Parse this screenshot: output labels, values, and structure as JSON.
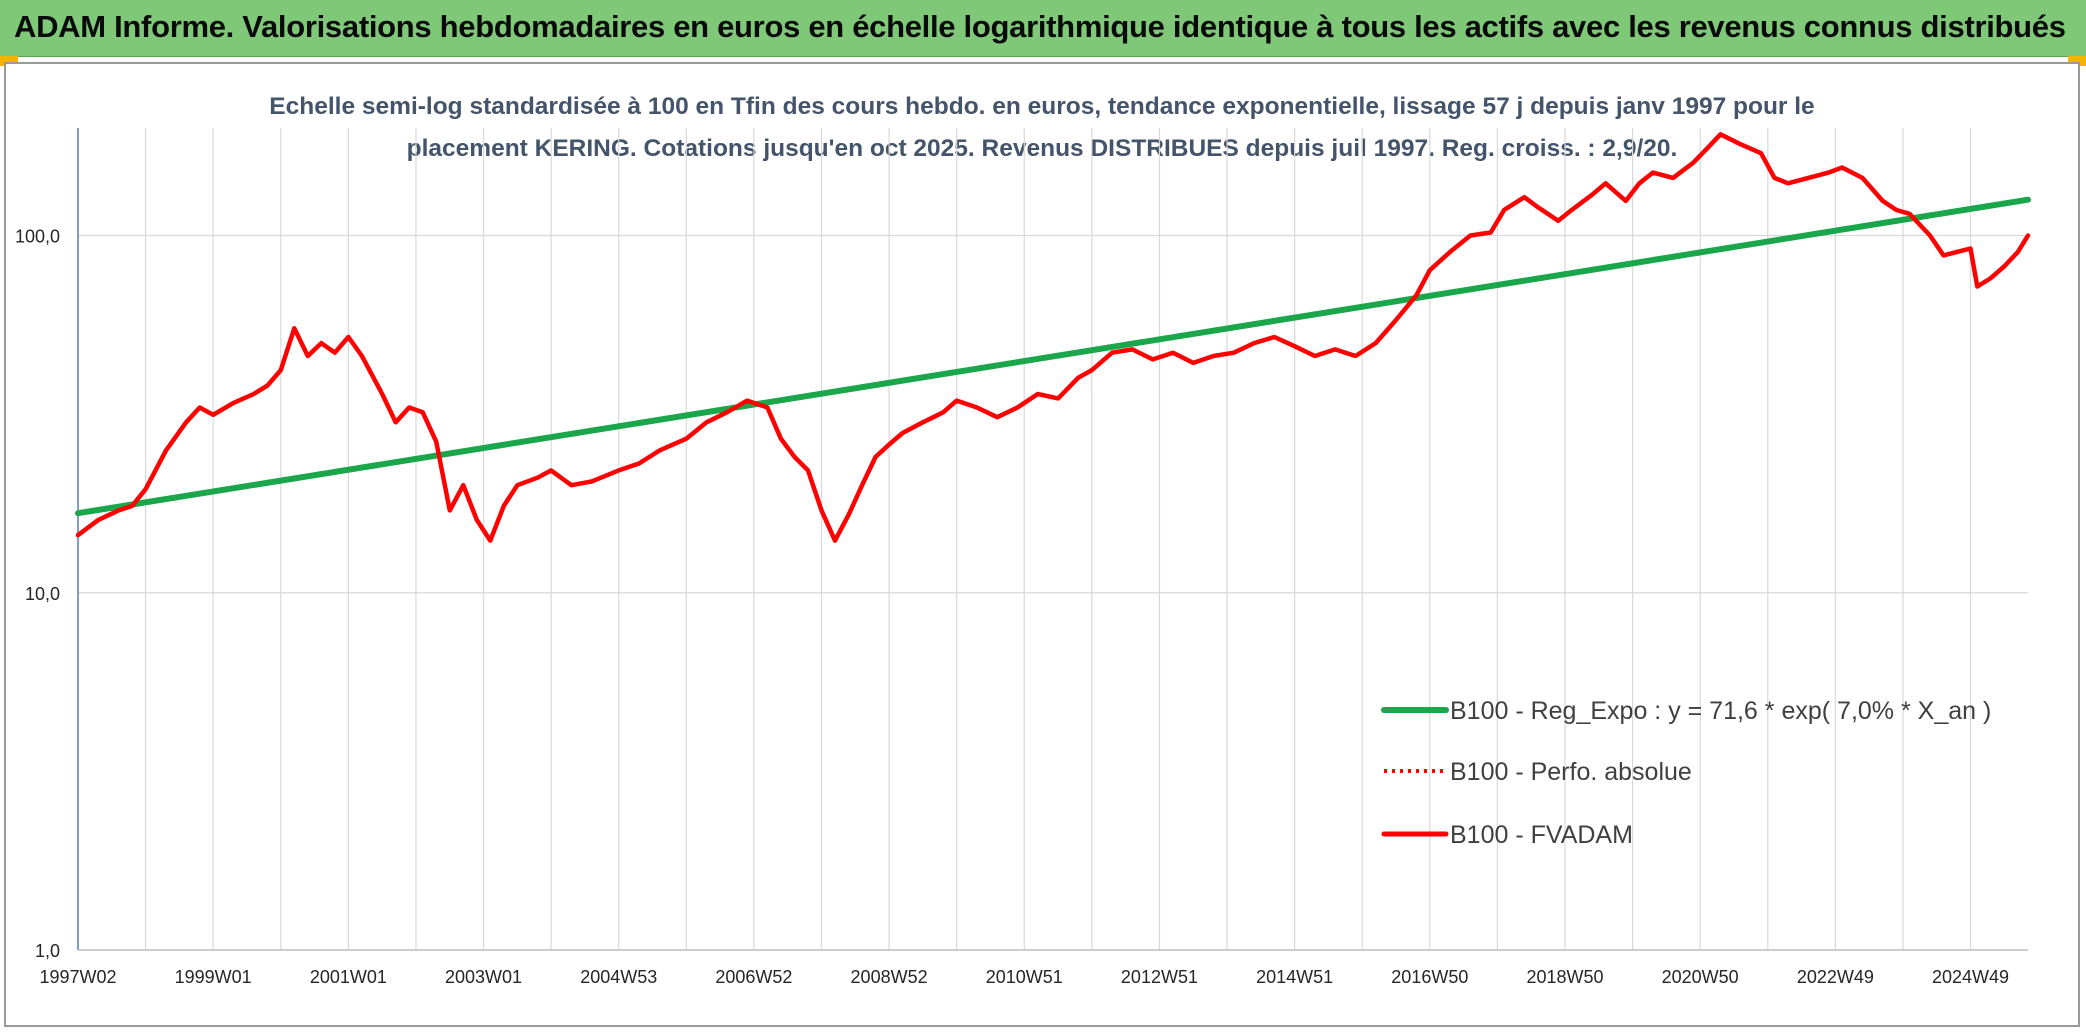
{
  "header": {
    "title": "ADAM Informe. Valorisations hebdomadaires en euros en échelle logarithmique identique à tous les actifs avec les revenus connus distribués"
  },
  "chart_data": {
    "type": "line",
    "title_lines": [
      "Echelle semi-log standardisée à 100 en Tfin des cours hebdo. en euros, tendance exponentielle, lissage 57 j depuis janv 1997 pour le",
      "placement KERING. Cotations jusqu'en oct 2025. Revenus DISTRIBUES depuis juil 1997. Reg. croiss. : 2,9/20."
    ],
    "y_scale": "log",
    "ylim": [
      1,
      200
    ],
    "y_ticks": [
      1,
      10,
      100
    ],
    "y_tick_labels": [
      "1,0",
      "10,0",
      "100,0"
    ],
    "xlim": [
      1997.0,
      2025.85
    ],
    "x_ticks": [
      1997.0,
      1999.0,
      2001.0,
      2003.0,
      2005.0,
      2007.0,
      2009.0,
      2011.0,
      2013.0,
      2015.0,
      2017.0,
      2019.0,
      2021.0,
      2023.0,
      2025.0
    ],
    "x_tick_labels": [
      "1997W02",
      "1999W01",
      "2001W01",
      "2003W01",
      "2004W53",
      "2006W52",
      "2008W52",
      "2010W51",
      "2012W51",
      "2014W51",
      "2016W50",
      "2018W50",
      "2020W50",
      "2022W49",
      "2024W49"
    ],
    "grid": true,
    "legend_position": "bottom-right",
    "colors": {
      "trend": "#1aa64a",
      "fvadam": "#ff0000",
      "perfo": "#ff0000",
      "grid": "#d9d9d9"
    },
    "series": [
      {
        "name": "B100 - Reg_Expo : y = 71,6 * exp( 7,0% *  X_an )",
        "style": "solid-green",
        "x": [
          1997.0,
          2025.85
        ],
        "y": [
          16.7,
          126
        ]
      },
      {
        "name": "B100 - Perfo. absolue",
        "style": "dotted-red",
        "x": [],
        "y": []
      },
      {
        "name": "B100 - FVADAM",
        "style": "solid-red",
        "x": [
          1997.0,
          1997.3,
          1997.6,
          1997.8,
          1998.0,
          1998.3,
          1998.6,
          1998.8,
          1999.0,
          1999.3,
          1999.6,
          1999.8,
          2000.0,
          2000.2,
          2000.4,
          2000.6,
          2000.8,
          2001.0,
          2001.2,
          2001.5,
          2001.7,
          2001.9,
          2002.1,
          2002.3,
          2002.5,
          2002.7,
          2002.9,
          2003.1,
          2003.3,
          2003.5,
          2003.8,
          2004.0,
          2004.3,
          2004.6,
          2005.0,
          2005.3,
          2005.6,
          2006.0,
          2006.3,
          2006.6,
          2006.9,
          2007.2,
          2007.4,
          2007.6,
          2007.8,
          2008.0,
          2008.2,
          2008.4,
          2008.6,
          2008.8,
          2009.0,
          2009.2,
          2009.5,
          2009.8,
          2010.0,
          2010.3,
          2010.6,
          2010.9,
          2011.2,
          2011.5,
          2011.8,
          2012.0,
          2012.3,
          2012.6,
          2012.9,
          2013.2,
          2013.5,
          2013.8,
          2014.1,
          2014.4,
          2014.7,
          2015.0,
          2015.3,
          2015.6,
          2015.9,
          2016.2,
          2016.5,
          2016.8,
          2017.0,
          2017.3,
          2017.6,
          2017.9,
          2018.1,
          2018.4,
          2018.6,
          2018.9,
          2019.1,
          2019.4,
          2019.6,
          2019.9,
          2020.1,
          2020.3,
          2020.6,
          2020.9,
          2021.1,
          2021.3,
          2021.6,
          2021.9,
          2022.1,
          2022.3,
          2022.6,
          2022.9,
          2023.1,
          2023.4,
          2023.7,
          2023.9,
          2024.1,
          2024.4,
          2024.6,
          2024.8,
          2025.0,
          2025.1,
          2025.3,
          2025.5,
          2025.7,
          2025.85
        ],
        "y": [
          14.5,
          16.0,
          17.0,
          17.5,
          19.5,
          25.0,
          30.0,
          33.0,
          31.5,
          34.0,
          36.0,
          38.0,
          42.0,
          55.0,
          46.0,
          50.0,
          47.0,
          52.0,
          46.0,
          36.0,
          30.0,
          33.0,
          32.0,
          26.5,
          17.0,
          20.0,
          16.0,
          14.0,
          17.5,
          20.0,
          21.0,
          22.0,
          20.0,
          20.5,
          22.0,
          23.0,
          25.0,
          27.0,
          30.0,
          32.0,
          34.5,
          33.0,
          27.0,
          24.0,
          22.0,
          17.0,
          14.0,
          16.5,
          20.0,
          24.0,
          26.0,
          28.0,
          30.0,
          32.0,
          34.5,
          33.0,
          31.0,
          33.0,
          36.0,
          35.0,
          40.0,
          42.0,
          47.0,
          48.0,
          45.0,
          47.0,
          44.0,
          46.0,
          47.0,
          50.0,
          52.0,
          49.0,
          46.0,
          48.0,
          46.0,
          50.0,
          58.0,
          68.0,
          80.0,
          90.0,
          100.0,
          102.0,
          118.0,
          128.0,
          120.0,
          110.0,
          118.0,
          130.0,
          140.0,
          125.0,
          140.0,
          150.0,
          145.0,
          160.0,
          175.0,
          192.0,
          180.0,
          170.0,
          145.0,
          140.0,
          145.0,
          150.0,
          155.0,
          145.0,
          125.0,
          118.0,
          115.0,
          100.0,
          88.0,
          90.0,
          92.0,
          72.0,
          76.0,
          82.0,
          90.0,
          100.0
        ]
      }
    ]
  }
}
